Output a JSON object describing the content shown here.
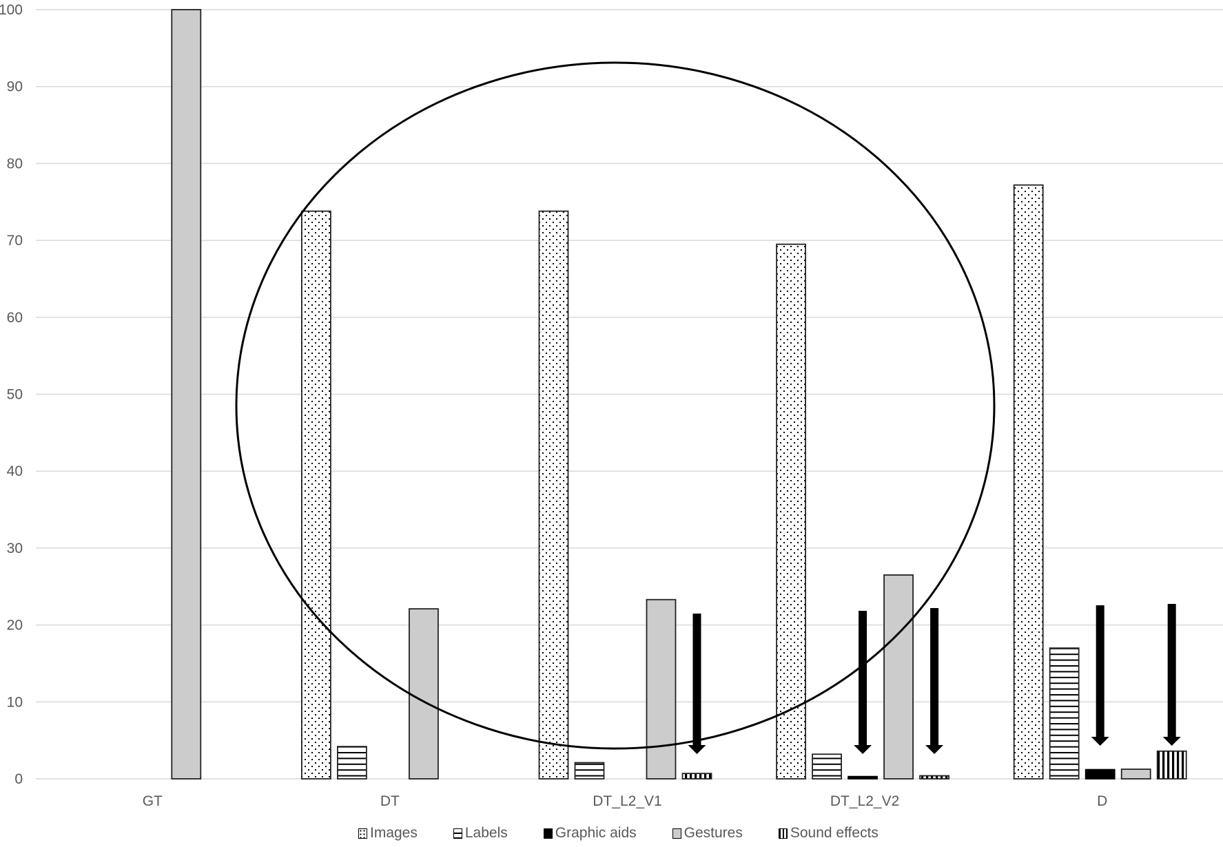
{
  "chart_data": {
    "type": "bar",
    "title": "",
    "xlabel": "",
    "ylabel": "",
    "ylim": [
      0,
      100
    ],
    "yticks": [
      0,
      10,
      20,
      30,
      40,
      50,
      60,
      70,
      80,
      90,
      100
    ],
    "grid": true,
    "legend_position": "bottom",
    "categories": [
      "GT",
      "DT",
      "DT_L2_V1",
      "DT_L2_V2",
      "D"
    ],
    "series": [
      {
        "name": "Images",
        "pattern": "dotted",
        "values": [
          0,
          73.8,
          73.8,
          69.5,
          77.2
        ]
      },
      {
        "name": "Labels",
        "pattern": "horizontal-lines",
        "values": [
          0,
          4.2,
          2.1,
          3.2,
          17.0
        ]
      },
      {
        "name": "Graphic aids",
        "pattern": "solid-black",
        "values": [
          0,
          0,
          0,
          0.3,
          1.2
        ]
      },
      {
        "name": "Gestures",
        "pattern": "solid-gray",
        "color": "#cccccc",
        "values": [
          100,
          22.1,
          23.3,
          26.5,
          1.25
        ]
      },
      {
        "name": "Sound effects",
        "pattern": "vertical-lines",
        "values": [
          0,
          0,
          0.7,
          0.4,
          3.6
        ]
      }
    ],
    "annotations": [
      {
        "type": "ellipse",
        "description": "Encircles DT, DT_L2_V1 and DT_L2_V2 groups"
      },
      {
        "type": "arrow-down",
        "category": "DT_L2_V1",
        "series": "Sound effects"
      },
      {
        "type": "arrow-down",
        "category": "DT_L2_V2",
        "series": "Graphic aids"
      },
      {
        "type": "arrow-down",
        "category": "DT_L2_V2",
        "series": "Sound effects"
      },
      {
        "type": "arrow-down",
        "category": "D",
        "series": "Graphic aids"
      },
      {
        "type": "arrow-down",
        "category": "D",
        "series": "Sound effects"
      }
    ]
  },
  "legend": {
    "items": [
      "Images",
      "Labels",
      "Graphic aids",
      "Gestures",
      "Sound effects"
    ]
  },
  "axis": {
    "y_labels": [
      "0",
      "10",
      "20",
      "30",
      "40",
      "50",
      "60",
      "70",
      "80",
      "90",
      "100"
    ],
    "x_labels": [
      "GT",
      "DT",
      "DT_L2_V1",
      "DT_L2_V2",
      "D"
    ]
  }
}
